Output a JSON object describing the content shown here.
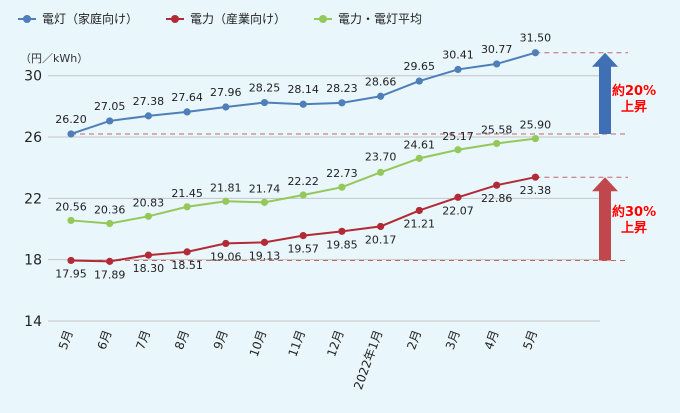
{
  "legend": {
    "home": "電灯（家庭向け）",
    "industry": "電力（産業向け）",
    "average": "電力・電灯平均"
  },
  "unit_label": "（円／kWh）",
  "callouts": {
    "home_rise": [
      "約20%",
      "上昇"
    ],
    "industry_rise": [
      "約30%",
      "上昇"
    ]
  },
  "colors": {
    "home": "#4f7fb8",
    "industry": "#b22a36",
    "average": "#94c85a",
    "grid": "#c6c6c6",
    "arrow_home": "#3f6fb5",
    "arrow_industry": "#c0474b",
    "callout_text": "#ff0000"
  },
  "chart_data": {
    "type": "line",
    "categories": [
      "5月",
      "6月",
      "7月",
      "8月",
      "9月",
      "10月",
      "11月",
      "12月",
      "2022年1月",
      "2月",
      "3月",
      "4月",
      "5月"
    ],
    "ylim": [
      14,
      32
    ],
    "yticks": [
      14,
      18,
      22,
      26,
      30
    ],
    "grid": true,
    "legend_position": "top-left",
    "series": [
      {
        "key": "home",
        "name": "電灯（家庭向け）",
        "values": [
          26.2,
          27.05,
          27.38,
          27.64,
          27.96,
          28.25,
          28.14,
          28.23,
          28.66,
          29.65,
          30.41,
          30.77,
          31.5
        ]
      },
      {
        "key": "industry",
        "name": "電力（産業向け）",
        "values": [
          17.95,
          17.89,
          18.3,
          18.51,
          19.06,
          19.13,
          19.57,
          19.85,
          20.17,
          21.21,
          22.07,
          22.86,
          23.38
        ]
      },
      {
        "key": "average",
        "name": "電力・電灯平均",
        "values": [
          20.56,
          20.36,
          20.83,
          21.45,
          21.81,
          21.74,
          22.22,
          22.73,
          23.7,
          24.61,
          25.17,
          25.58,
          25.9
        ]
      }
    ],
    "reference_lines": [
      26.2,
      31.5,
      17.95,
      23.38
    ]
  }
}
